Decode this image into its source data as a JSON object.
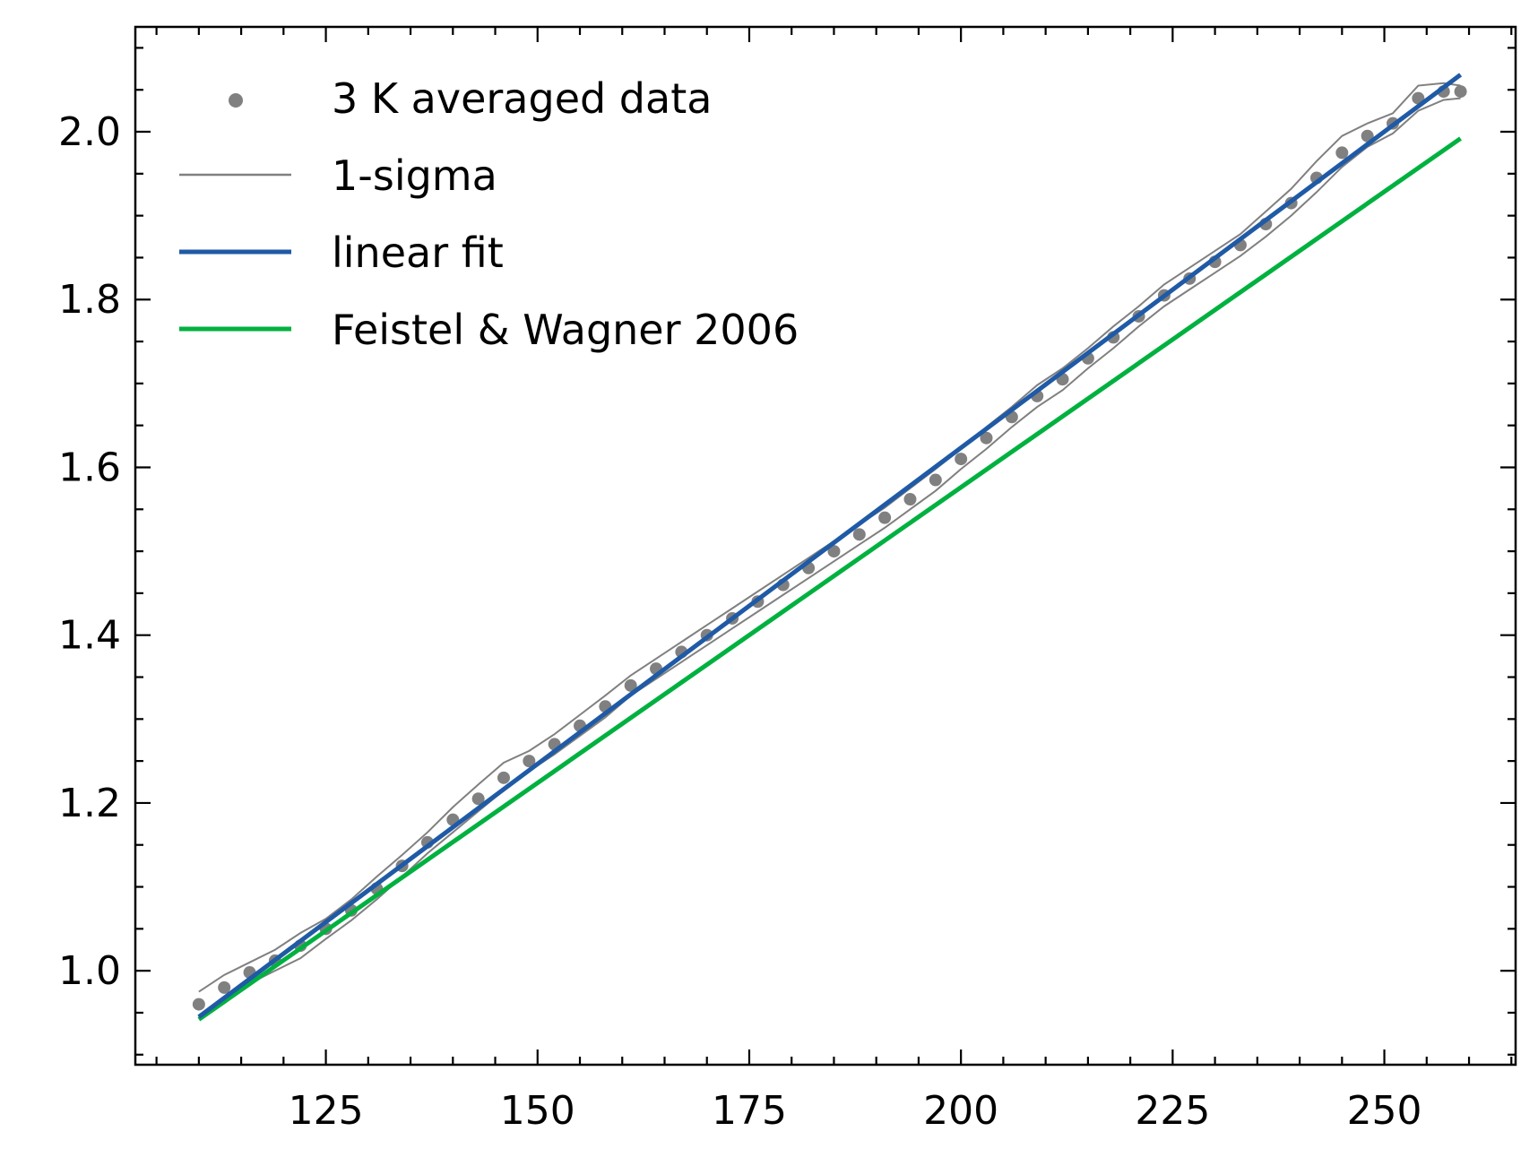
{
  "chart_data": {
    "type": "line",
    "title": "",
    "xlabel": "",
    "ylabel": "",
    "xlim": [
      102.5,
      265.5
    ],
    "ylim": [
      0.888,
      2.125
    ],
    "xticks": [
      125,
      150,
      175,
      200,
      225,
      250
    ],
    "yticks": [
      1.0,
      1.2,
      1.4,
      1.6,
      1.8,
      2.0
    ],
    "x_minor_step": 5,
    "y_minor_step": 0.05,
    "grid": false,
    "legend_position": "top-left",
    "series": [
      {
        "name": "3 K averaged data",
        "kind": "scatter",
        "color": "#808080",
        "x": [
          110,
          113,
          116,
          119,
          122,
          125,
          128,
          131,
          134,
          137,
          140,
          143,
          146,
          149,
          152,
          155,
          158,
          161,
          164,
          167,
          170,
          173,
          176,
          179,
          182,
          185,
          188,
          191,
          194,
          197,
          200,
          203,
          206,
          209,
          212,
          215,
          218,
          221,
          224,
          227,
          230,
          233,
          236,
          239,
          242,
          245,
          248,
          251,
          254,
          257,
          259
        ],
        "y": [
          0.96,
          0.98,
          0.998,
          1.012,
          1.03,
          1.05,
          1.072,
          1.098,
          1.125,
          1.153,
          1.18,
          1.205,
          1.23,
          1.25,
          1.27,
          1.292,
          1.315,
          1.34,
          1.36,
          1.38,
          1.4,
          1.42,
          1.44,
          1.46,
          1.48,
          1.5,
          1.52,
          1.54,
          1.562,
          1.585,
          1.61,
          1.635,
          1.66,
          1.685,
          1.705,
          1.73,
          1.755,
          1.78,
          1.805,
          1.825,
          1.845,
          1.865,
          1.89,
          1.915,
          1.945,
          1.975,
          1.995,
          2.01,
          2.04,
          2.048,
          2.048
        ]
      },
      {
        "name": "1-sigma",
        "kind": "band",
        "color": "#808080",
        "x": [
          110,
          113,
          116,
          119,
          122,
          125,
          128,
          131,
          134,
          137,
          140,
          143,
          146,
          149,
          152,
          155,
          158,
          161,
          164,
          167,
          170,
          173,
          176,
          179,
          182,
          185,
          188,
          191,
          194,
          197,
          200,
          203,
          206,
          209,
          212,
          215,
          218,
          221,
          224,
          227,
          230,
          233,
          236,
          239,
          242,
          245,
          248,
          251,
          254,
          257,
          259
        ],
        "upper": [
          0.975,
          0.995,
          1.01,
          1.025,
          1.045,
          1.062,
          1.085,
          1.112,
          1.138,
          1.165,
          1.195,
          1.222,
          1.248,
          1.262,
          1.282,
          1.305,
          1.328,
          1.352,
          1.372,
          1.392,
          1.412,
          1.432,
          1.452,
          1.472,
          1.492,
          1.512,
          1.532,
          1.552,
          1.575,
          1.598,
          1.622,
          1.648,
          1.672,
          1.698,
          1.718,
          1.742,
          1.768,
          1.792,
          1.818,
          1.838,
          1.858,
          1.878,
          1.905,
          1.932,
          1.965,
          1.995,
          2.01,
          2.022,
          2.055,
          2.058,
          2.055
        ],
        "lower": [
          0.945,
          0.965,
          0.985,
          1.0,
          1.015,
          1.038,
          1.06,
          1.085,
          1.112,
          1.14,
          1.165,
          1.19,
          1.215,
          1.238,
          1.258,
          1.28,
          1.302,
          1.328,
          1.348,
          1.368,
          1.388,
          1.408,
          1.428,
          1.448,
          1.468,
          1.488,
          1.508,
          1.528,
          1.55,
          1.572,
          1.598,
          1.622,
          1.648,
          1.672,
          1.692,
          1.718,
          1.742,
          1.768,
          1.792,
          1.812,
          1.832,
          1.852,
          1.875,
          1.9,
          1.928,
          1.958,
          1.982,
          1.998,
          2.025,
          2.038,
          2.04
        ]
      },
      {
        "name": "linear fit",
        "kind": "line",
        "color": "#1f5aa6",
        "x": [
          110,
          259
        ],
        "y": [
          0.945,
          2.068
        ]
      },
      {
        "name": "Feistel & Wagner 2006",
        "kind": "line",
        "color": "#00b140",
        "x": [
          110,
          259
        ],
        "y": [
          0.942,
          1.992
        ]
      }
    ]
  }
}
